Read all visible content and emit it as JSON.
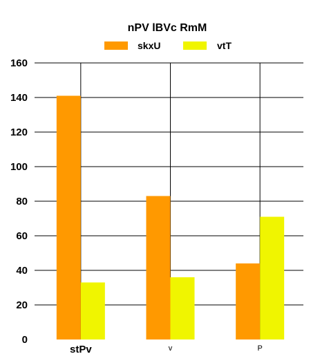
{
  "chart_data": {
    "type": "bar",
    "title": "nPV lBVc RmM",
    "xlabel": "",
    "ylabel": "",
    "categories": [
      "stPv",
      "v",
      "P"
    ],
    "series": [
      {
        "name": "skxU",
        "values": [
          141,
          83,
          44
        ],
        "color": "#FF9900"
      },
      {
        "name": "vtT",
        "values": [
          33,
          36,
          71
        ],
        "color": "#F0F500"
      }
    ],
    "ylim": [
      0,
      160
    ],
    "yticks": [
      "0",
      "20",
      "40",
      "60",
      "80",
      "100",
      "120",
      "140",
      "160"
    ],
    "grid": true,
    "legend_position": "top"
  }
}
